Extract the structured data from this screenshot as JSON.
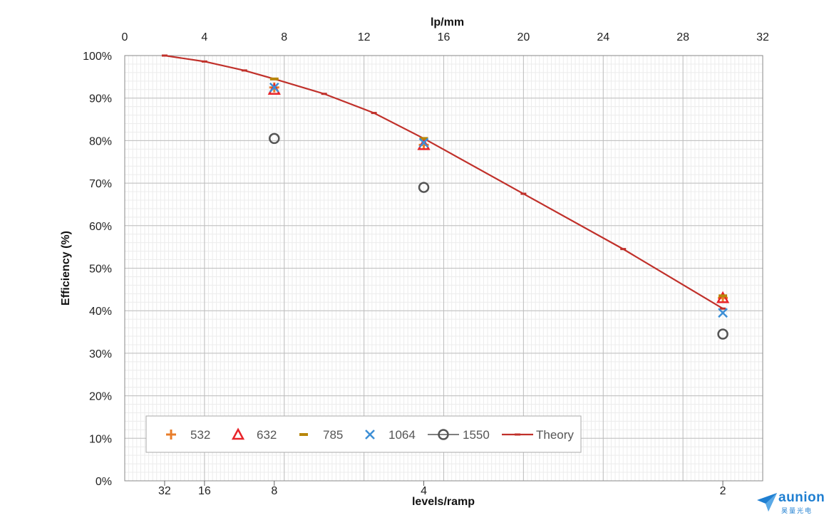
{
  "chart_data": {
    "type": "scatter",
    "x_top": {
      "label": "lp/mm",
      "range": [
        0,
        32
      ],
      "ticks": [
        "0",
        "4",
        "8",
        "12",
        "16",
        "20",
        "24",
        "28",
        "32"
      ]
    },
    "x_bottom": {
      "label": "levels/ramp",
      "ticks": [
        {
          "label": "32",
          "lp_mm": 2
        },
        {
          "label": "16",
          "lp_mm": 4
        },
        {
          "label": "8",
          "lp_mm": 7.5
        },
        {
          "label": "4",
          "lp_mm": 15
        },
        {
          "label": "2",
          "lp_mm": 30
        }
      ]
    },
    "y_axis": {
      "label": "Efficiency (%)",
      "range": [
        0,
        100
      ],
      "ticks": [
        "0%",
        "10%",
        "20%",
        "30%",
        "40%",
        "50%",
        "60%",
        "70%",
        "80%",
        "90%",
        "100%"
      ]
    },
    "grid": true,
    "legend_position": "bottom-left",
    "series": [
      {
        "name": "532",
        "marker": "plus",
        "color": "#e87d2a",
        "points": [
          {
            "x": 7.5,
            "y": 92.5
          },
          {
            "x": 15,
            "y": 79
          },
          {
            "x": 30,
            "y": 43
          }
        ]
      },
      {
        "name": "632",
        "marker": "triangle",
        "color": "#e8242a",
        "points": [
          {
            "x": 7.5,
            "y": 92
          },
          {
            "x": 15,
            "y": 79
          },
          {
            "x": 30,
            "y": 43
          }
        ]
      },
      {
        "name": "785",
        "marker": "dash",
        "color": "#b8860b",
        "points": [
          {
            "x": 7.5,
            "y": 94.5
          },
          {
            "x": 15,
            "y": 80.5
          },
          {
            "x": 30,
            "y": 43.5
          }
        ]
      },
      {
        "name": "1064",
        "marker": "x",
        "color": "#3d8fd6",
        "points": [
          {
            "x": 7.5,
            "y": 92.5
          },
          {
            "x": 15,
            "y": 79.5
          },
          {
            "x": 30,
            "y": 39.5
          }
        ]
      },
      {
        "name": "1550",
        "marker": "circle",
        "color": "#555555",
        "points": [
          {
            "x": 7.5,
            "y": 80.5
          },
          {
            "x": 15,
            "y": 69
          },
          {
            "x": 30,
            "y": 34.5
          }
        ]
      },
      {
        "name": "Theory",
        "marker": "line",
        "color": "#c0302a",
        "points": [
          {
            "x": 2,
            "y": 100
          },
          {
            "x": 4,
            "y": 98.6
          },
          {
            "x": 6,
            "y": 96.5
          },
          {
            "x": 7.5,
            "y": 94.5
          },
          {
            "x": 10,
            "y": 91
          },
          {
            "x": 12.5,
            "y": 86.5
          },
          {
            "x": 15,
            "y": 80.5
          },
          {
            "x": 20,
            "y": 67.5
          },
          {
            "x": 25,
            "y": 54.5
          },
          {
            "x": 30,
            "y": 40.5
          }
        ]
      }
    ]
  },
  "logo": {
    "name": "aunion",
    "sub": "昊量光电"
  }
}
